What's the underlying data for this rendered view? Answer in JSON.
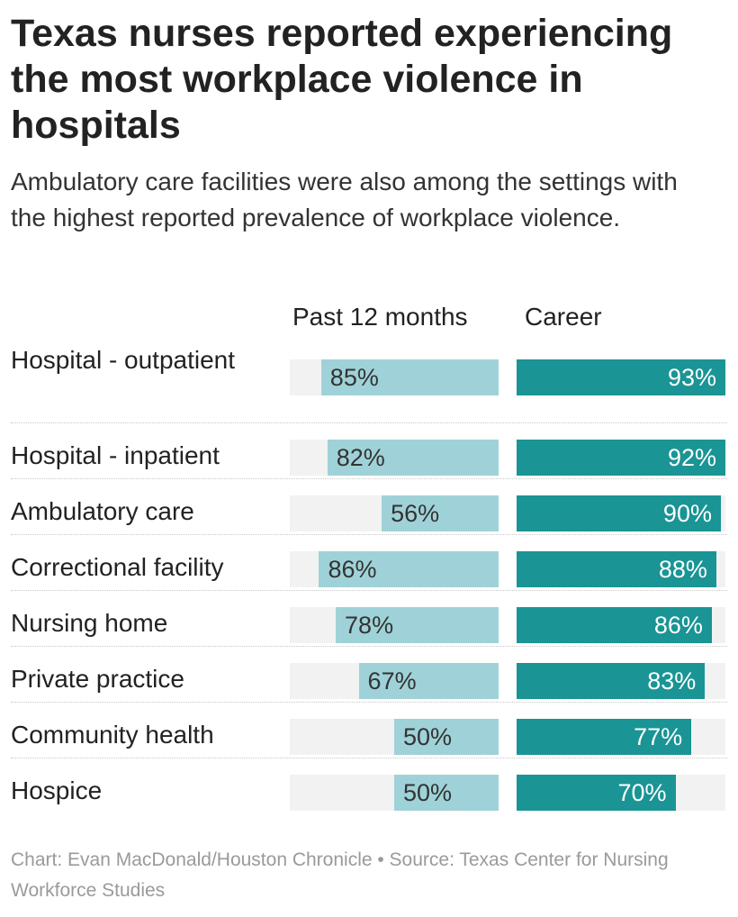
{
  "title": "Texas nurses reported experiencing the most workplace violence in hospitals",
  "subtitle": "Ambulatory care facilities were also among the settings with the highest reported prevalence of workplace violence.",
  "footer": "Chart: Evan MacDonald/Houston Chronicle • Source: Texas Center for Nursing Workforce Studies",
  "colors": {
    "past": "#9fd2d8",
    "career": "#1a9495",
    "track": "#f2f2f2",
    "past_text": "#333333",
    "career_text": "#ffffff"
  },
  "chart_data": {
    "type": "bar",
    "title": "Texas nurses reported experiencing the most workplace violence in hospitals",
    "categories": [
      "Hospital - outpatient",
      "Hospital - inpatient",
      "Ambulatory care",
      "Correctional facility",
      "Nursing home",
      "Private practice",
      "Community health",
      "Hospice"
    ],
    "series": [
      {
        "name": "Past 12 months",
        "values": [
          85,
          82,
          56,
          86,
          78,
          67,
          50,
          50
        ],
        "labels": [
          "85%",
          "82%",
          "56%",
          "86%",
          "78%",
          "67%",
          "50%",
          "50%"
        ]
      },
      {
        "name": "Career",
        "values": [
          93,
          92,
          90,
          88,
          86,
          83,
          77,
          70
        ],
        "labels": [
          "93%",
          "92%",
          "90%",
          "88%",
          "86%",
          "83%",
          "77%",
          "70%"
        ]
      }
    ],
    "xlim": [
      0,
      100
    ],
    "unit": "%"
  }
}
